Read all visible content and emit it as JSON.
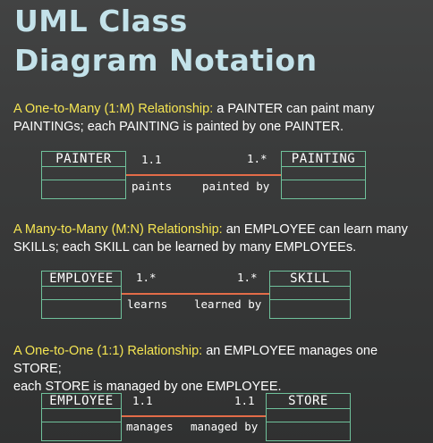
{
  "title": {
    "line1": "UML Class",
    "line2": "Diagram Notation"
  },
  "sections": [
    {
      "heading": "A One-to-Many (1:M) Relationship:",
      "line1_rest": " a PAINTER can paint many",
      "line2": "PAINTINGs; each PAINTING is painted by one PAINTER.",
      "left_entity": "PAINTER",
      "right_entity": "PAINTING",
      "left_mult": "1.1",
      "right_mult": "1.*",
      "left_verb": "paints",
      "right_verb": "painted by"
    },
    {
      "heading": "A Many-to-Many (M:N) Relationship:",
      "line1_rest": " an EMPLOYEE can learn many",
      "line2": "SKILLs; each SKILL can be learned by many EMPLOYEEs.",
      "left_entity": "EMPLOYEE",
      "right_entity": "SKILL",
      "left_mult": "1.*",
      "right_mult": "1.*",
      "left_verb": "learns",
      "right_verb": "learned by"
    },
    {
      "heading": "A One-to-One (1:1) Relationship:",
      "line1_rest": " an EMPLOYEE manages one STORE;",
      "line2": "each STORE is managed by one EMPLOYEE.",
      "left_entity": "EMPLOYEE",
      "right_entity": "STORE",
      "left_mult": "1.1",
      "right_mult": "1.1",
      "left_verb": "manages",
      "right_verb": "managed by"
    }
  ],
  "colors": {
    "title": "#c3e2ea",
    "heading": "#f5e552",
    "box_border": "#6fc19b",
    "relationship_line": "#e36c48"
  }
}
